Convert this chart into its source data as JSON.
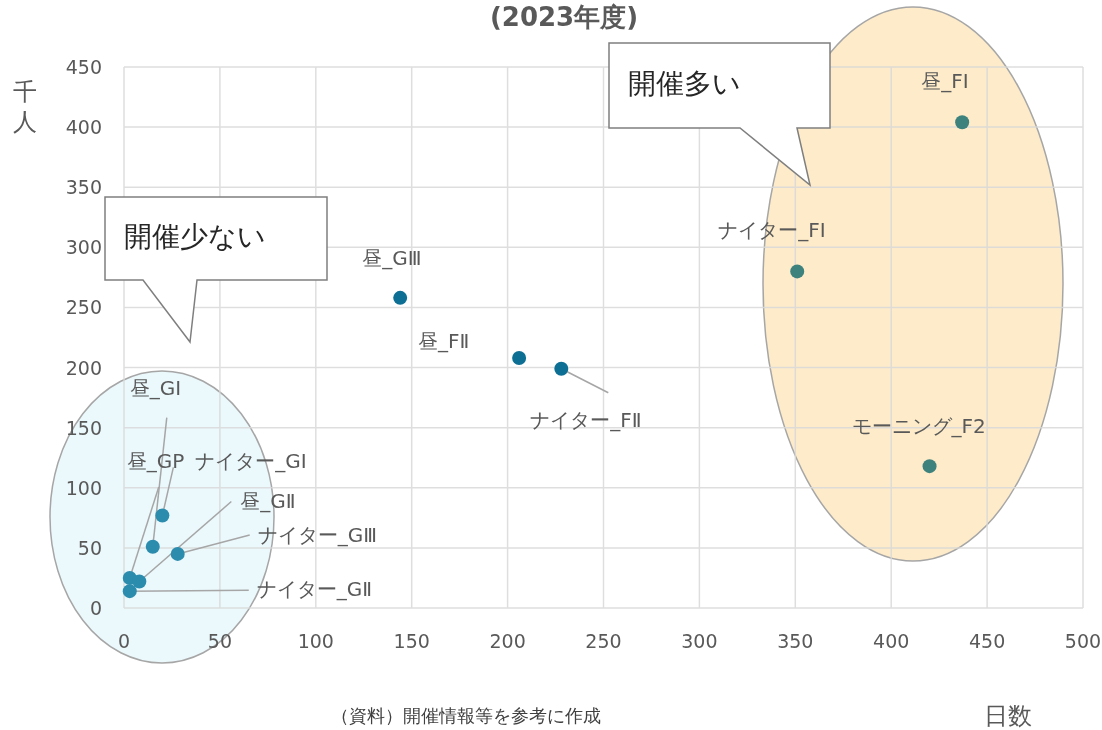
{
  "chart_data": {
    "type": "scatter",
    "title": "(2023年度)",
    "xlabel": "日数",
    "ylabel": "千人",
    "x": [
      144,
      206,
      228,
      437,
      351,
      420,
      15,
      3,
      20,
      8,
      28,
      3
    ],
    "values": [
      258,
      208,
      199,
      404,
      280,
      118,
      51,
      25,
      77,
      22,
      45,
      14
    ],
    "colors": [
      "#0e6f94",
      "#0e6f94",
      "#0e6f94",
      "#3d827d",
      "#3d827d",
      "#3d827d",
      "#2c8cad",
      "#2c8cad",
      "#2c8cad",
      "#2c8cad",
      "#2c8cad",
      "#2c8cad"
    ],
    "marker": "circle",
    "xlim": [
      0,
      500
    ],
    "xticks": [
      0,
      50,
      100,
      150,
      200,
      250,
      300,
      350,
      400,
      450,
      500
    ],
    "ylim": [
      0,
      450
    ],
    "yticks": [
      0,
      50,
      100,
      150,
      200,
      250,
      300,
      350,
      400,
      450
    ],
    "grid": true,
    "annotations": [
      {
        "text": "昼_GⅢ",
        "x": 144,
        "y": 258
      },
      {
        "text": "昼_FⅡ",
        "x": 206,
        "y": 208
      },
      {
        "text": "ナイター_FⅡ",
        "x": 228,
        "y": 199
      },
      {
        "text": "昼_FⅠ",
        "x": 437,
        "y": 404
      },
      {
        "text": "ナイター_FⅠ",
        "x": 351,
        "y": 280
      },
      {
        "text": "モーニング_F2",
        "x": 420,
        "y": 118
      },
      {
        "text": "昼_GⅠ",
        "x": 15,
        "y": 51
      },
      {
        "text": "昼_GP",
        "x": 3,
        "y": 25
      },
      {
        "text": "ナイター_GⅠ",
        "x": 20,
        "y": 77
      },
      {
        "text": "昼_GⅡ",
        "x": 8,
        "y": 22
      },
      {
        "text": "ナイター_GⅢ",
        "x": 28,
        "y": 45
      },
      {
        "text": "ナイター_GⅡ",
        "x": 3,
        "y": 14
      },
      "開催少ない",
      "開催多い",
      "（資料）開催情報等を参考に作成"
    ]
  }
}
